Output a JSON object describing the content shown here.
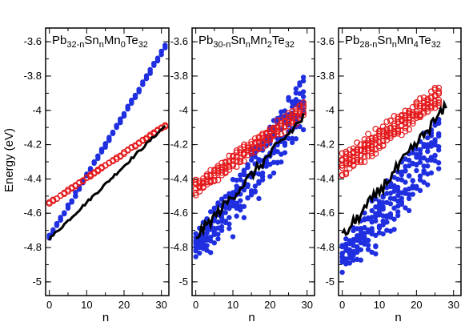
{
  "figure": {
    "ylabel": "Energy (eV)",
    "xlabel": "n"
  },
  "colors": {
    "blue_points": "#1f2fe0",
    "red_points": "#e41a1c",
    "black_line": "#000000"
  },
  "chart_data": [
    {
      "type": "scatter",
      "title": "Pb32-nSnnMn0Te32",
      "title_parts": [
        {
          "text": "Pb",
          "sub": false
        },
        {
          "text": "32-n",
          "sub": true
        },
        {
          "text": "Sn",
          "sub": false
        },
        {
          "text": "n",
          "sub": true
        },
        {
          "text": "Mn",
          "sub": false
        },
        {
          "text": "0",
          "sub": true
        },
        {
          "text": "Te",
          "sub": false
        },
        {
          "text": "32",
          "sub": true
        }
      ],
      "xlabel": "n",
      "ylabel": "Energy (eV)",
      "xlim": [
        -1,
        32
      ],
      "ylim": [
        -5.08,
        -3.52
      ],
      "xticks": [
        0,
        10,
        20,
        30
      ],
      "yticks": [
        -5,
        -4.8,
        -4.6,
        -4.4,
        -4.2,
        -4,
        -3.8,
        -3.6
      ],
      "ytick_labels": [
        "-5",
        "-4.8",
        "-4.6",
        "-4.4",
        "-4.2",
        "-4",
        "-3.8",
        "-3.6"
      ],
      "blue": {
        "n_max": 31,
        "start": -4.74,
        "end": -3.63,
        "fan": 0.0,
        "scatter": 0.012,
        "per_n": 4
      },
      "red": {
        "n_max": 31,
        "start": -4.54,
        "end": -4.09,
        "fan": 0.0,
        "scatter": 0.006,
        "per_n": 3
      },
      "line": {
        "n_max": 31,
        "start": -4.75,
        "end": -4.09,
        "wiggle": 0.008
      }
    },
    {
      "type": "scatter",
      "title": "Pb30-nSnnMn2Te32",
      "title_parts": [
        {
          "text": "Pb",
          "sub": false
        },
        {
          "text": "30-n",
          "sub": true
        },
        {
          "text": "Sn",
          "sub": false
        },
        {
          "text": "n",
          "sub": true
        },
        {
          "text": "Mn",
          "sub": false
        },
        {
          "text": "2",
          "sub": true
        },
        {
          "text": "Te",
          "sub": false
        },
        {
          "text": "32",
          "sub": true
        }
      ],
      "xlabel": "n",
      "ylabel": "",
      "xlim": [
        -1,
        32
      ],
      "ylim": [
        -5.08,
        -3.52
      ],
      "xticks": [
        0,
        10,
        20,
        30
      ],
      "yticks": [
        -5,
        -4.8,
        -4.6,
        -4.4,
        -4.2,
        -4,
        -3.8,
        -3.6
      ],
      "ytick_labels": [
        "-5",
        "-4.8",
        "-4.6",
        "-4.4",
        "-4.2",
        "-4",
        "-3.8",
        "-3.6"
      ],
      "blue": {
        "n_max": 29,
        "start": -4.72,
        "end": -3.8,
        "fan": 0.24,
        "scatter": 0.03,
        "per_n": 9
      },
      "red": {
        "n_max": 29,
        "start": -4.45,
        "end": -4.0,
        "fan": 0.07,
        "scatter": 0.015,
        "per_n": 6
      },
      "line": {
        "n_max": 29,
        "start": -4.74,
        "end": -4.04,
        "wiggle": 0.03
      }
    },
    {
      "type": "scatter",
      "title": "Pb28-nSnnMn4Te32",
      "title_parts": [
        {
          "text": "Pb",
          "sub": false
        },
        {
          "text": "28-n",
          "sub": true
        },
        {
          "text": "Sn",
          "sub": false
        },
        {
          "text": "n",
          "sub": true
        },
        {
          "text": "Mn",
          "sub": false
        },
        {
          "text": "4",
          "sub": true
        },
        {
          "text": "Te",
          "sub": false
        },
        {
          "text": "32",
          "sub": true
        }
      ],
      "xlabel": "n",
      "ylabel": "",
      "xlim": [
        -1,
        32
      ],
      "ylim": [
        -5.08,
        -3.52
      ],
      "xticks": [
        0,
        10,
        20,
        30
      ],
      "yticks": [
        -5,
        -4.8,
        -4.6,
        -4.4,
        -4.2,
        -4,
        -3.8,
        -3.6
      ],
      "ytick_labels": [
        "-5",
        "-4.8",
        "-4.6",
        "-4.4",
        "-4.2",
        "-4",
        "-3.8",
        "-3.6"
      ],
      "blue": {
        "n_max": 26,
        "start": -4.78,
        "end": -4.02,
        "fan": 0.25,
        "scatter": 0.03,
        "per_n": 9
      },
      "red": {
        "n_max": 26,
        "start": -4.32,
        "end": -3.92,
        "fan": 0.1,
        "scatter": 0.025,
        "per_n": 8
      },
      "line": {
        "n_max": 28,
        "start": -4.74,
        "end": -3.98,
        "wiggle": 0.035
      }
    }
  ]
}
